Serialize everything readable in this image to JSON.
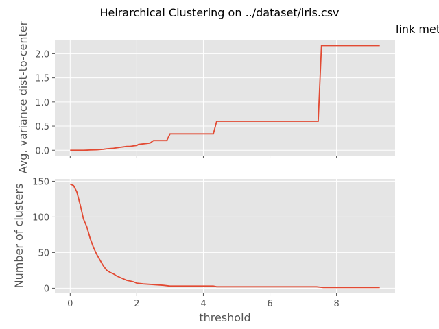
{
  "figure": {
    "title": "Heirarchical Clustering on ../dataset/iris.csv",
    "side_text": "link met"
  },
  "colors": {
    "background": "#E5E5E5",
    "grid": "#FFFFFF",
    "line": "#E24A33",
    "tick": "#555555"
  },
  "chart_data": [
    {
      "type": "line",
      "ylabel": "Avg. variance dist-to-center",
      "xlabel": "",
      "xlim": [
        -0.46,
        9.76
      ],
      "ylim": [
        -0.11,
        2.29
      ],
      "xticks": [
        0,
        2,
        4,
        6,
        8
      ],
      "xtick_labels": [],
      "yticks": [
        0.0,
        0.5,
        1.0,
        1.5,
        2.0
      ],
      "ytick_labels": [
        "0.0",
        "0.5",
        "1.0",
        "1.5",
        "2.0"
      ],
      "grid": true,
      "series": [
        {
          "x": [
            0,
            0.2,
            0.4,
            0.6,
            0.8,
            1.0,
            1.1,
            1.3,
            1.5,
            1.6,
            1.7,
            1.8,
            1.9,
            2.0,
            2.05,
            2.4,
            2.5,
            2.9,
            3.0,
            4.3,
            4.4,
            7.45,
            7.55,
            9.3
          ],
          "y": [
            0.0,
            0.0,
            0.0,
            0.005,
            0.01,
            0.02,
            0.03,
            0.04,
            0.06,
            0.07,
            0.08,
            0.08,
            0.09,
            0.1,
            0.12,
            0.15,
            0.2,
            0.2,
            0.34,
            0.34,
            0.6,
            0.6,
            2.17,
            2.17
          ]
        }
      ]
    },
    {
      "type": "line",
      "ylabel": "Number of clusters",
      "xlabel": "threshold",
      "xlim": [
        -0.46,
        9.76
      ],
      "ylim": [
        -7.3,
        153.3
      ],
      "xticks": [
        0,
        2,
        4,
        6,
        8
      ],
      "xtick_labels": [
        "0",
        "2",
        "4",
        "6",
        "8"
      ],
      "yticks": [
        0,
        50,
        100,
        150
      ],
      "ytick_labels": [
        "0",
        "50",
        "100",
        "150"
      ],
      "grid": true,
      "series": [
        {
          "x": [
            0,
            0.1,
            0.2,
            0.3,
            0.4,
            0.5,
            0.6,
            0.7,
            0.8,
            0.9,
            1.0,
            1.1,
            1.2,
            1.3,
            1.4,
            1.5,
            1.6,
            1.7,
            1.8,
            1.9,
            2.0,
            2.2,
            2.5,
            2.8,
            3.0,
            4.3,
            4.4,
            7.4,
            7.6,
            9.3
          ],
          "y": [
            146,
            144,
            135,
            117,
            97,
            86,
            70,
            57,
            47,
            39,
            31,
            25,
            22,
            20,
            17,
            15,
            13,
            11,
            10,
            9,
            7,
            6,
            5,
            4,
            3,
            3,
            2,
            2,
            1,
            1
          ]
        }
      ]
    }
  ]
}
